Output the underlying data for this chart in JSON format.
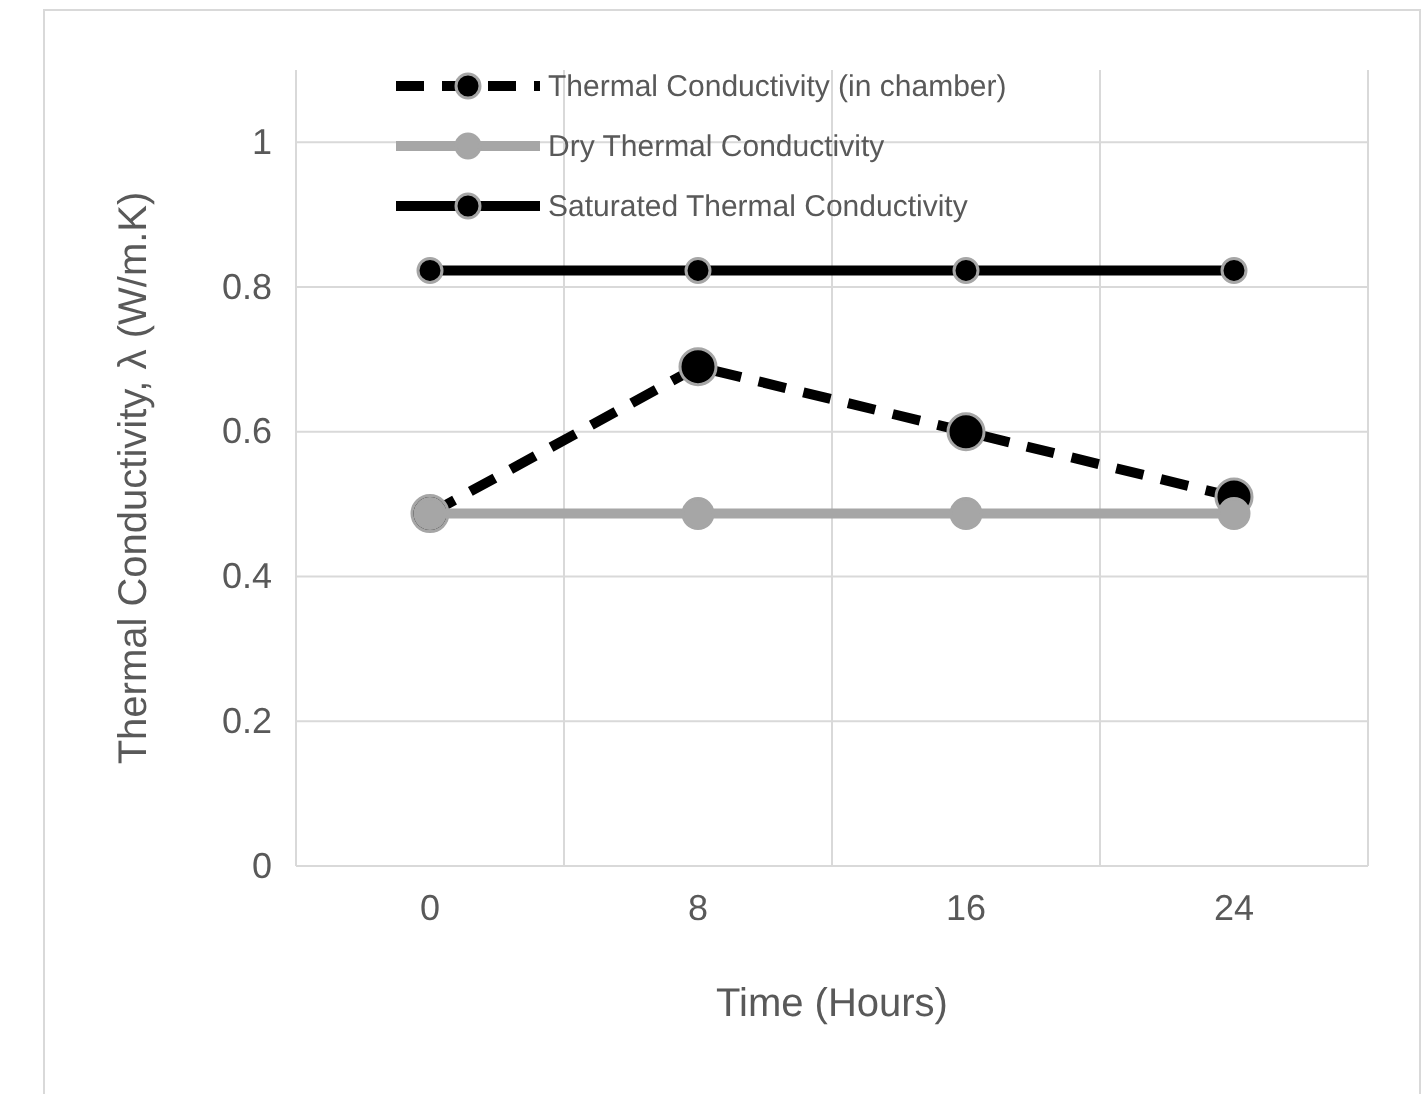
{
  "chart_data": {
    "type": "line",
    "xlabel": "Time (Hours)",
    "ylabel": "Thermal Conductivity, λ (W/m.K)",
    "categories": [
      "0",
      "8",
      "16",
      "24"
    ],
    "ylim": [
      0,
      1.1
    ],
    "yticks": [
      0,
      0.2,
      0.4,
      0.6,
      0.8,
      1
    ],
    "grid": true,
    "legend": "top",
    "marker": "circle",
    "series": [
      {
        "name": "Thermal Conductivity (in chamber)",
        "color": "#000000",
        "line_style": "dashed",
        "values": [
          0.487,
          0.69,
          0.6,
          0.51
        ]
      },
      {
        "name": "Dry Thermal Conductivity",
        "color": "#a6a6a6",
        "line_style": "solid",
        "values": [
          0.487,
          0.487,
          0.487,
          0.487
        ]
      },
      {
        "name": "Saturated Thermal Conductivity",
        "color": "#000000",
        "line_style": "solid",
        "values": [
          0.823,
          0.823,
          0.823,
          0.823
        ]
      }
    ]
  }
}
